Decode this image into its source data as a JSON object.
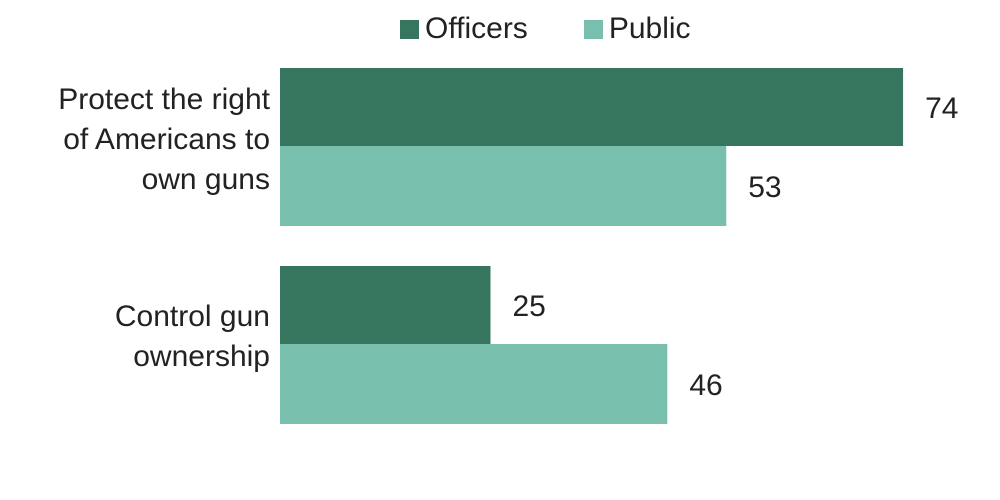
{
  "chart_data": {
    "type": "bar",
    "orientation": "horizontal",
    "categories": [
      "Protect the right of Americans to own guns",
      "Control gun ownership"
    ],
    "category_labels": [
      "Protect the  right\nof Americans to\nown guns",
      "Control gun\nownership"
    ],
    "series": [
      {
        "name": "Officers",
        "values": [
          74,
          25
        ],
        "color": "#36765f"
      },
      {
        "name": "Public",
        "values": [
          53,
          46
        ],
        "color": "#78bfae"
      }
    ],
    "xlim": [
      0,
      100
    ],
    "legend": "top",
    "grid": false
  }
}
